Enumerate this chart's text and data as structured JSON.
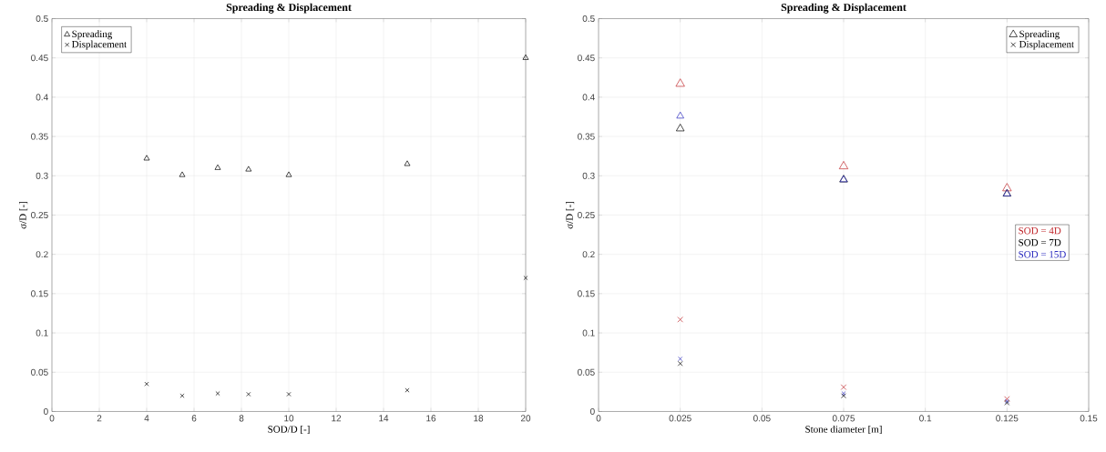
{
  "chart_data": [
    {
      "type": "scatter",
      "title": "Spreading & Displacement",
      "xlabel": "SOD/D [-]",
      "ylabel": "σ/D [-]",
      "xlim": [
        0,
        20
      ],
      "xticks": [
        0,
        2,
        4,
        6,
        8,
        10,
        12,
        14,
        16,
        18,
        20
      ],
      "ylim": [
        0,
        0.5
      ],
      "yticks": [
        0,
        0.05,
        0.1,
        0.15,
        0.2,
        0.25,
        0.3,
        0.35,
        0.4,
        0.45,
        0.5
      ],
      "grid": true,
      "legend": "top left",
      "series": [
        {
          "name": "Spreading",
          "color": "#000000",
          "marker": "triangle",
          "x": [
            4,
            5.5,
            7,
            8.3,
            10,
            15,
            20
          ],
          "values": [
            0.322,
            0.301,
            0.31,
            0.308,
            0.301,
            0.315,
            0.45
          ]
        },
        {
          "name": "Displacement",
          "color": "#000000",
          "marker": "cross",
          "x": [
            4,
            5.5,
            7,
            8.3,
            10,
            15,
            20
          ],
          "values": [
            0.035,
            0.02,
            0.023,
            0.022,
            0.022,
            0.027,
            0.17
          ]
        }
      ]
    },
    {
      "type": "scatter",
      "title": "Spreading & Displacement",
      "xlabel": "Stone diameter [m]",
      "ylabel": "σ/D [-]",
      "xlim": [
        0,
        0.15
      ],
      "xticks": [
        0,
        0.025,
        0.05,
        0.075,
        0.1,
        0.125,
        0.15
      ],
      "ylim": [
        0,
        0.5
      ],
      "yticks": [
        0,
        0.05,
        0.1,
        0.15,
        0.2,
        0.25,
        0.3,
        0.35,
        0.4,
        0.45,
        0.5
      ],
      "grid": true,
      "legend": "top right",
      "annotations": [
        "SOD = 4D",
        "SOD = 7D",
        "SOD = 15D"
      ],
      "series": [
        {
          "color": "#c0282d",
          "marker": "triangle",
          "x": [
            0.025,
            0.075,
            0.125
          ],
          "values": [
            0.417,
            0.312,
            0.284
          ]
        },
        {
          "name": "Spreading",
          "color": "#000000",
          "marker": "triangle",
          "x": [
            0.025,
            0.075,
            0.125
          ],
          "values": [
            0.36,
            0.295,
            0.277
          ]
        },
        {
          "color": "#2b2bbf",
          "marker": "triangle",
          "x": [
            0.025,
            0.075,
            0.125
          ],
          "values": [
            0.376,
            0.295,
            0.277
          ]
        },
        {
          "color": "#c0282d",
          "marker": "cross",
          "x": [
            0.025,
            0.075,
            0.125
          ],
          "values": [
            0.117,
            0.031,
            0.016
          ]
        },
        {
          "name": "Displacement",
          "color": "#000000",
          "marker": "cross",
          "x": [
            0.025,
            0.075,
            0.125
          ],
          "values": [
            0.061,
            0.02,
            0.011
          ]
        },
        {
          "color": "#2b2bbf",
          "marker": "cross",
          "x": [
            0.025,
            0.075,
            0.125
          ],
          "values": [
            0.067,
            0.023,
            0.013
          ]
        }
      ]
    }
  ]
}
